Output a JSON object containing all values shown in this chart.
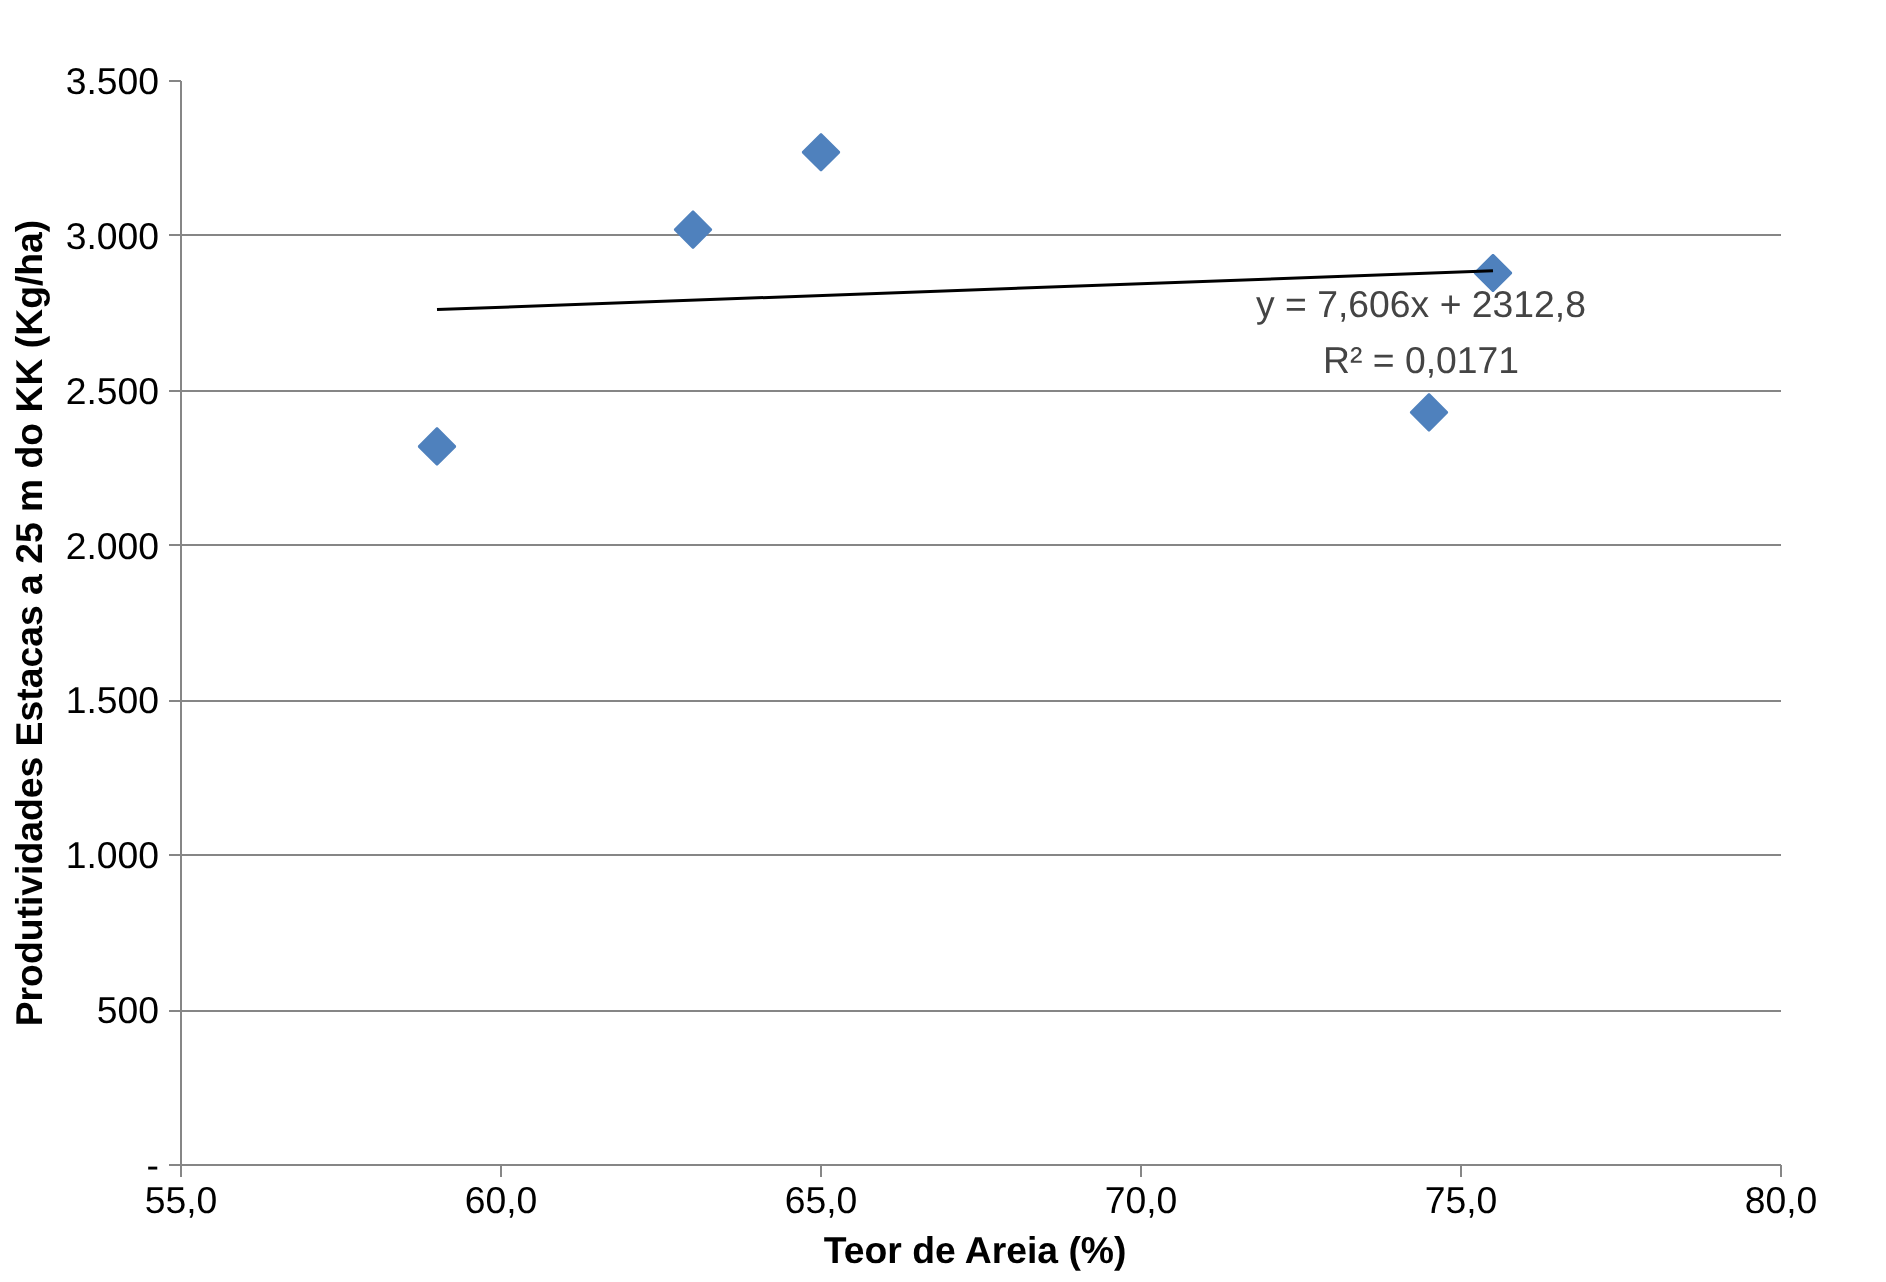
{
  "chart_data": {
    "type": "scatter",
    "xlabel": "Teor  de Areia (%)",
    "ylabel": "Produtividades Estacas a 25 m do KK (Kg/ha)",
    "series": [
      {
        "color": "#4f81bd",
        "marker": "diamond",
        "x": [
          59.0,
          63.0,
          65.0,
          74.5,
          75.5
        ],
        "values": [
          2320,
          3020,
          3270,
          2430,
          2880
        ]
      },
      {
        "type": "line",
        "color": "#000000",
        "x": [
          59.0,
          75.5
        ],
        "values": [
          2762,
          2887
        ]
      }
    ],
    "xlim": [
      55,
      80
    ],
    "xticks": [
      {
        "value": 55,
        "label": "55,0"
      },
      {
        "value": 60,
        "label": "60,0"
      },
      {
        "value": 65,
        "label": "65,0"
      },
      {
        "value": 70,
        "label": "70,0"
      },
      {
        "value": 75,
        "label": "75,0"
      },
      {
        "value": 80,
        "label": "80,0"
      }
    ],
    "ylim": [
      0,
      3500
    ],
    "yticks": [
      {
        "value": 0,
        "label": "-"
      },
      500,
      {
        "value": 1000,
        "label": "1.000"
      },
      {
        "value": 1500,
        "label": "1.500"
      },
      {
        "value": 2000,
        "label": "2.000"
      },
      {
        "value": 2500,
        "label": "2.500"
      },
      {
        "value": 3000,
        "label": "3.000"
      },
      {
        "value": 3500,
        "label": "3.500"
      }
    ],
    "grid": "y",
    "annotations": [
      "y = 7,606x + 2312,8",
      "R² = 0,0171"
    ]
  }
}
